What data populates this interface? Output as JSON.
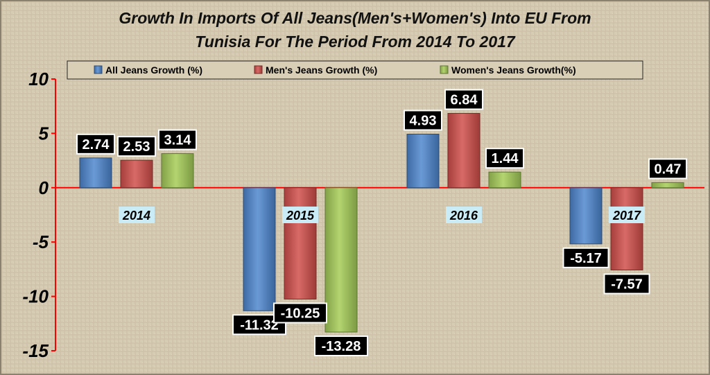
{
  "chart_data": {
    "type": "bar",
    "title_line1": "Growth In Imports Of All Jeans(Men's+Women's) Into EU From",
    "title_line2": "Tunisia For The Period From 2014 To 2017",
    "categories": [
      "2014",
      "2015",
      "2016",
      "2017"
    ],
    "series": [
      {
        "name": "All Jeans  Growth (%)",
        "color": "#4f81bd",
        "values": [
          2.74,
          -11.32,
          4.93,
          -5.17
        ]
      },
      {
        "name": "Men's Jeans  Growth (%)",
        "color": "#c0504d",
        "values": [
          2.53,
          -10.25,
          6.84,
          -7.57
        ]
      },
      {
        "name": "Women's Jeans  Growth(%)",
        "color": "#9bbb59",
        "values": [
          3.14,
          -13.28,
          1.44,
          0.47
        ]
      }
    ],
    "value_labels": [
      [
        "2.74",
        "-11.32",
        "4.93",
        "-5.17"
      ],
      [
        "2.53",
        "-10.25",
        "6.84",
        "-7.57"
      ],
      [
        "3.14",
        "-13.28",
        "1.44",
        "0.47"
      ]
    ],
    "ylim": [
      -15,
      10
    ],
    "yticks": [
      10,
      5,
      0,
      -5,
      -10,
      -15
    ],
    "ytick_labels": [
      "10",
      "5",
      "0",
      "-5",
      "-10",
      "-15"
    ],
    "xlabel": "",
    "ylabel": "",
    "legend_position": "top",
    "grid": false,
    "colors": {
      "background": "#d6cbb3",
      "axis": "#ff0000",
      "label_box": "#000000",
      "label_text": "#ffffff",
      "category_box": "#c9ecf6"
    }
  }
}
